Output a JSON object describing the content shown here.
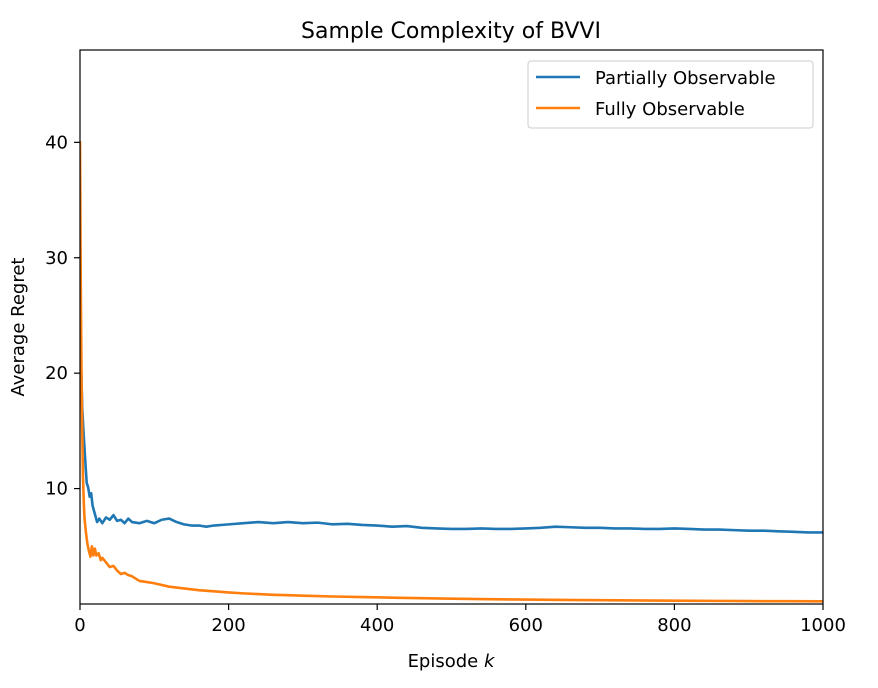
{
  "chart_data": {
    "type": "line",
    "title": "Sample Complexity of BVVI",
    "xlabel": "Episode",
    "xlabel_var": "k",
    "ylabel": "Average Regret",
    "xlim": [
      0,
      1000
    ],
    "ylim": [
      0,
      48
    ],
    "xticks": [
      0,
      200,
      400,
      600,
      800,
      1000
    ],
    "xtick_labels": [
      "0",
      "200",
      "400",
      "600",
      "800",
      "1000"
    ],
    "yticks": [
      10,
      20,
      30,
      40
    ],
    "ytick_labels": [
      "10",
      "20",
      "30",
      "40"
    ],
    "grid": false,
    "legend_position": "top-right",
    "series": [
      {
        "name": "Partially Observable",
        "color": "#1f77b4",
        "x": [
          1,
          3,
          5,
          7,
          9,
          11,
          13,
          15,
          17,
          20,
          23,
          26,
          30,
          35,
          40,
          45,
          50,
          55,
          60,
          65,
          70,
          80,
          90,
          100,
          110,
          120,
          130,
          140,
          150,
          160,
          170,
          180,
          200,
          220,
          240,
          260,
          280,
          300,
          320,
          340,
          360,
          380,
          400,
          420,
          440,
          460,
          480,
          500,
          520,
          540,
          560,
          580,
          600,
          620,
          640,
          660,
          680,
          700,
          720,
          740,
          760,
          780,
          800,
          820,
          840,
          860,
          880,
          900,
          920,
          940,
          960,
          980,
          1000
        ],
        "y": [
          22.0,
          17.0,
          14.6,
          12.5,
          10.5,
          10.1,
          9.3,
          9.6,
          8.5,
          7.8,
          7.1,
          7.4,
          7.0,
          7.5,
          7.3,
          7.7,
          7.2,
          7.3,
          7.0,
          7.4,
          7.1,
          7.0,
          7.2,
          7.0,
          7.3,
          7.4,
          7.1,
          6.9,
          6.8,
          6.8,
          6.7,
          6.8,
          6.9,
          7.0,
          7.1,
          7.0,
          7.1,
          7.0,
          7.05,
          6.9,
          6.95,
          6.85,
          6.8,
          6.7,
          6.75,
          6.6,
          6.55,
          6.5,
          6.5,
          6.55,
          6.5,
          6.5,
          6.55,
          6.6,
          6.7,
          6.65,
          6.6,
          6.6,
          6.55,
          6.55,
          6.5,
          6.5,
          6.55,
          6.5,
          6.45,
          6.45,
          6.4,
          6.35,
          6.35,
          6.3,
          6.25,
          6.2,
          6.2
        ]
      },
      {
        "name": "Fully Observable",
        "color": "#ff7f0e",
        "x": [
          0,
          1,
          2,
          3,
          4,
          5,
          6,
          8,
          10,
          12,
          14,
          16,
          18,
          20,
          22,
          25,
          28,
          30,
          35,
          40,
          45,
          50,
          55,
          60,
          65,
          70,
          80,
          90,
          100,
          120,
          140,
          160,
          180,
          200,
          220,
          240,
          260,
          280,
          300,
          340,
          380,
          420,
          460,
          500,
          550,
          600,
          650,
          700,
          750,
          800,
          850,
          900,
          950,
          1000
        ],
        "y": [
          40.0,
          28.0,
          20.0,
          15.0,
          11.0,
          9.0,
          7.5,
          6.2,
          5.2,
          4.6,
          4.1,
          5.0,
          4.2,
          4.8,
          4.2,
          4.4,
          3.8,
          4.0,
          3.6,
          3.2,
          3.3,
          2.9,
          2.6,
          2.7,
          2.5,
          2.4,
          2.0,
          1.9,
          1.8,
          1.5,
          1.35,
          1.2,
          1.1,
          1.0,
          0.92,
          0.86,
          0.8,
          0.76,
          0.72,
          0.65,
          0.6,
          0.55,
          0.5,
          0.46,
          0.42,
          0.38,
          0.35,
          0.33,
          0.31,
          0.29,
          0.27,
          0.25,
          0.24,
          0.23
        ]
      }
    ]
  }
}
